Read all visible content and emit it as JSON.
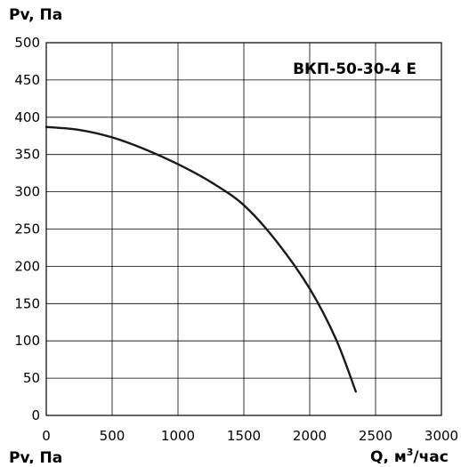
{
  "chart_data": {
    "type": "line",
    "title": "ВКП-50-30-4 E",
    "xlabel": "Q, м",
    "xlabel_superscript": "3",
    "xlabel_suffix": "/час",
    "ylabel": "Pv, Па",
    "ylabel_bottom_repeat": "Pv, Па",
    "xlim": [
      0,
      3000
    ],
    "ylim": [
      0,
      500
    ],
    "x_ticks": [
      0,
      500,
      1000,
      1500,
      2000,
      2500,
      3000
    ],
    "y_ticks": [
      0,
      50,
      100,
      150,
      200,
      250,
      300,
      350,
      400,
      450,
      500
    ],
    "grid": true,
    "series": [
      {
        "x": [
          0,
          250,
          500,
          750,
          1000,
          1250,
          1500,
          1750,
          2000,
          2200,
          2350
        ],
        "y": [
          387,
          383,
          373,
          357,
          337,
          313,
          282,
          233,
          170,
          102,
          32
        ]
      }
    ],
    "colors": {
      "line": "#1a1a1a",
      "grid": "#000000",
      "text": "#000000"
    }
  }
}
